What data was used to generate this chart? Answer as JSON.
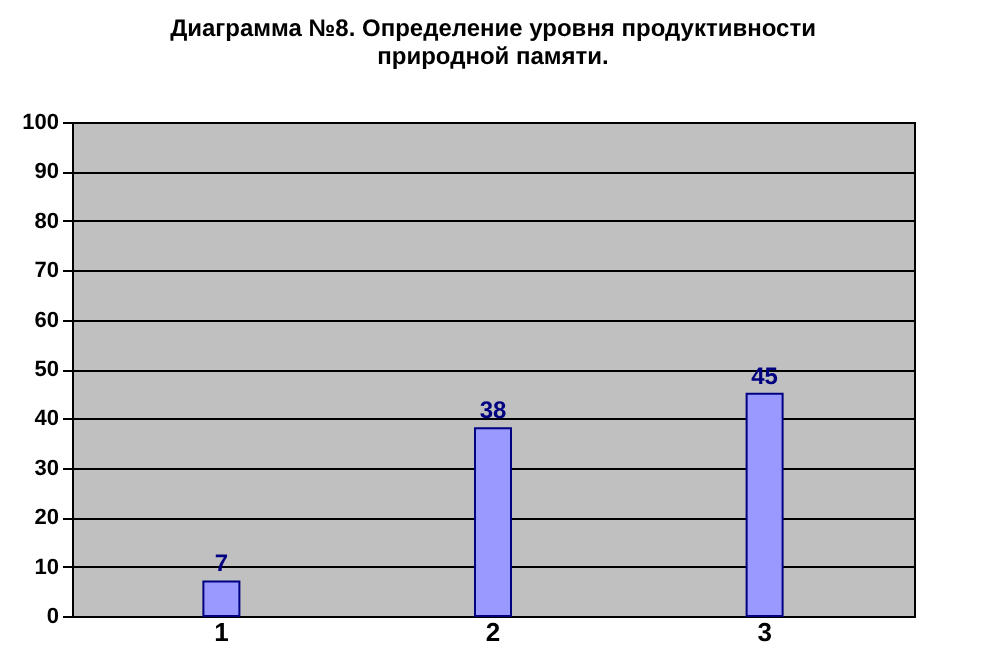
{
  "chart_data": {
    "type": "bar",
    "title": "Диаграмма №8. Определение уровня продуктивности\nприродной памяти.",
    "categories": [
      "1",
      "2",
      "3",
      null
    ],
    "values": [
      7,
      38,
      45,
      null
    ],
    "color": "#9999ff",
    "ylim": [
      0,
      100
    ],
    "yticks": [
      0,
      10,
      20,
      30,
      40,
      50,
      60,
      70,
      80,
      90,
      100
    ],
    "grid": "y",
    "data_labels": true
  }
}
